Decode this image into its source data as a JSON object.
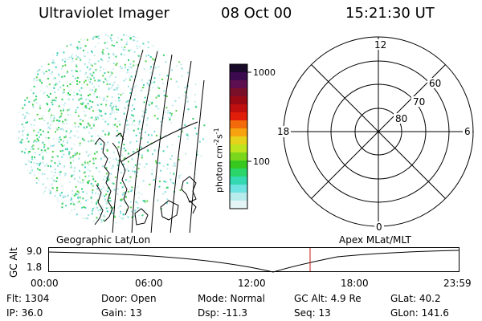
{
  "header": {
    "instrument": "Ultraviolet Imager",
    "date": "08 Oct 00",
    "time": "15:21:30 UT"
  },
  "colorbar": {
    "label": "photon cm",
    "label_exp1": "-2",
    "label_mid": "s",
    "label_exp2": "-1",
    "ticks": [
      "1000",
      "100"
    ],
    "colors": [
      "#1a0a2a",
      "#3b0a4f",
      "#5e0f4f",
      "#7a0f2a",
      "#9a0a14",
      "#c00f0f",
      "#e01e0a",
      "#f26a0a",
      "#f7a20f",
      "#e6d21a",
      "#bde41e",
      "#7ad71c",
      "#36c81e",
      "#2ad66a",
      "#33d9b0",
      "#6fe2e2",
      "#b7ecec",
      "#e5f4f4"
    ]
  },
  "polar": {
    "mlt_labels": {
      "top": "12",
      "left": "18",
      "right": "6",
      "bottom": "0"
    },
    "lat_labels": [
      "60",
      "70",
      "80"
    ]
  },
  "timeline": {
    "left_title": "Geographic Lat/Lon",
    "right_title": "Apex MLat/MLT",
    "ylabel": "GC Alt",
    "yticks": [
      "9.0",
      "1.8"
    ],
    "xticks": [
      "00:00",
      "06:00",
      "12:00",
      "18:00",
      "23:59"
    ],
    "marker_color": "#d01818"
  },
  "info": {
    "flt": "Flt: 1304",
    "ip": "IP: 36.0",
    "door": "Door: Open",
    "gain": "Gain: 13",
    "mode": "Mode: Normal",
    "dsp": "Dsp:  -11.3",
    "gcalt": "GC Alt: 4.9 Re",
    "seq": "Seq: 13",
    "glat": "GLat:  40.2",
    "glon": "GLon: 141.6"
  }
}
